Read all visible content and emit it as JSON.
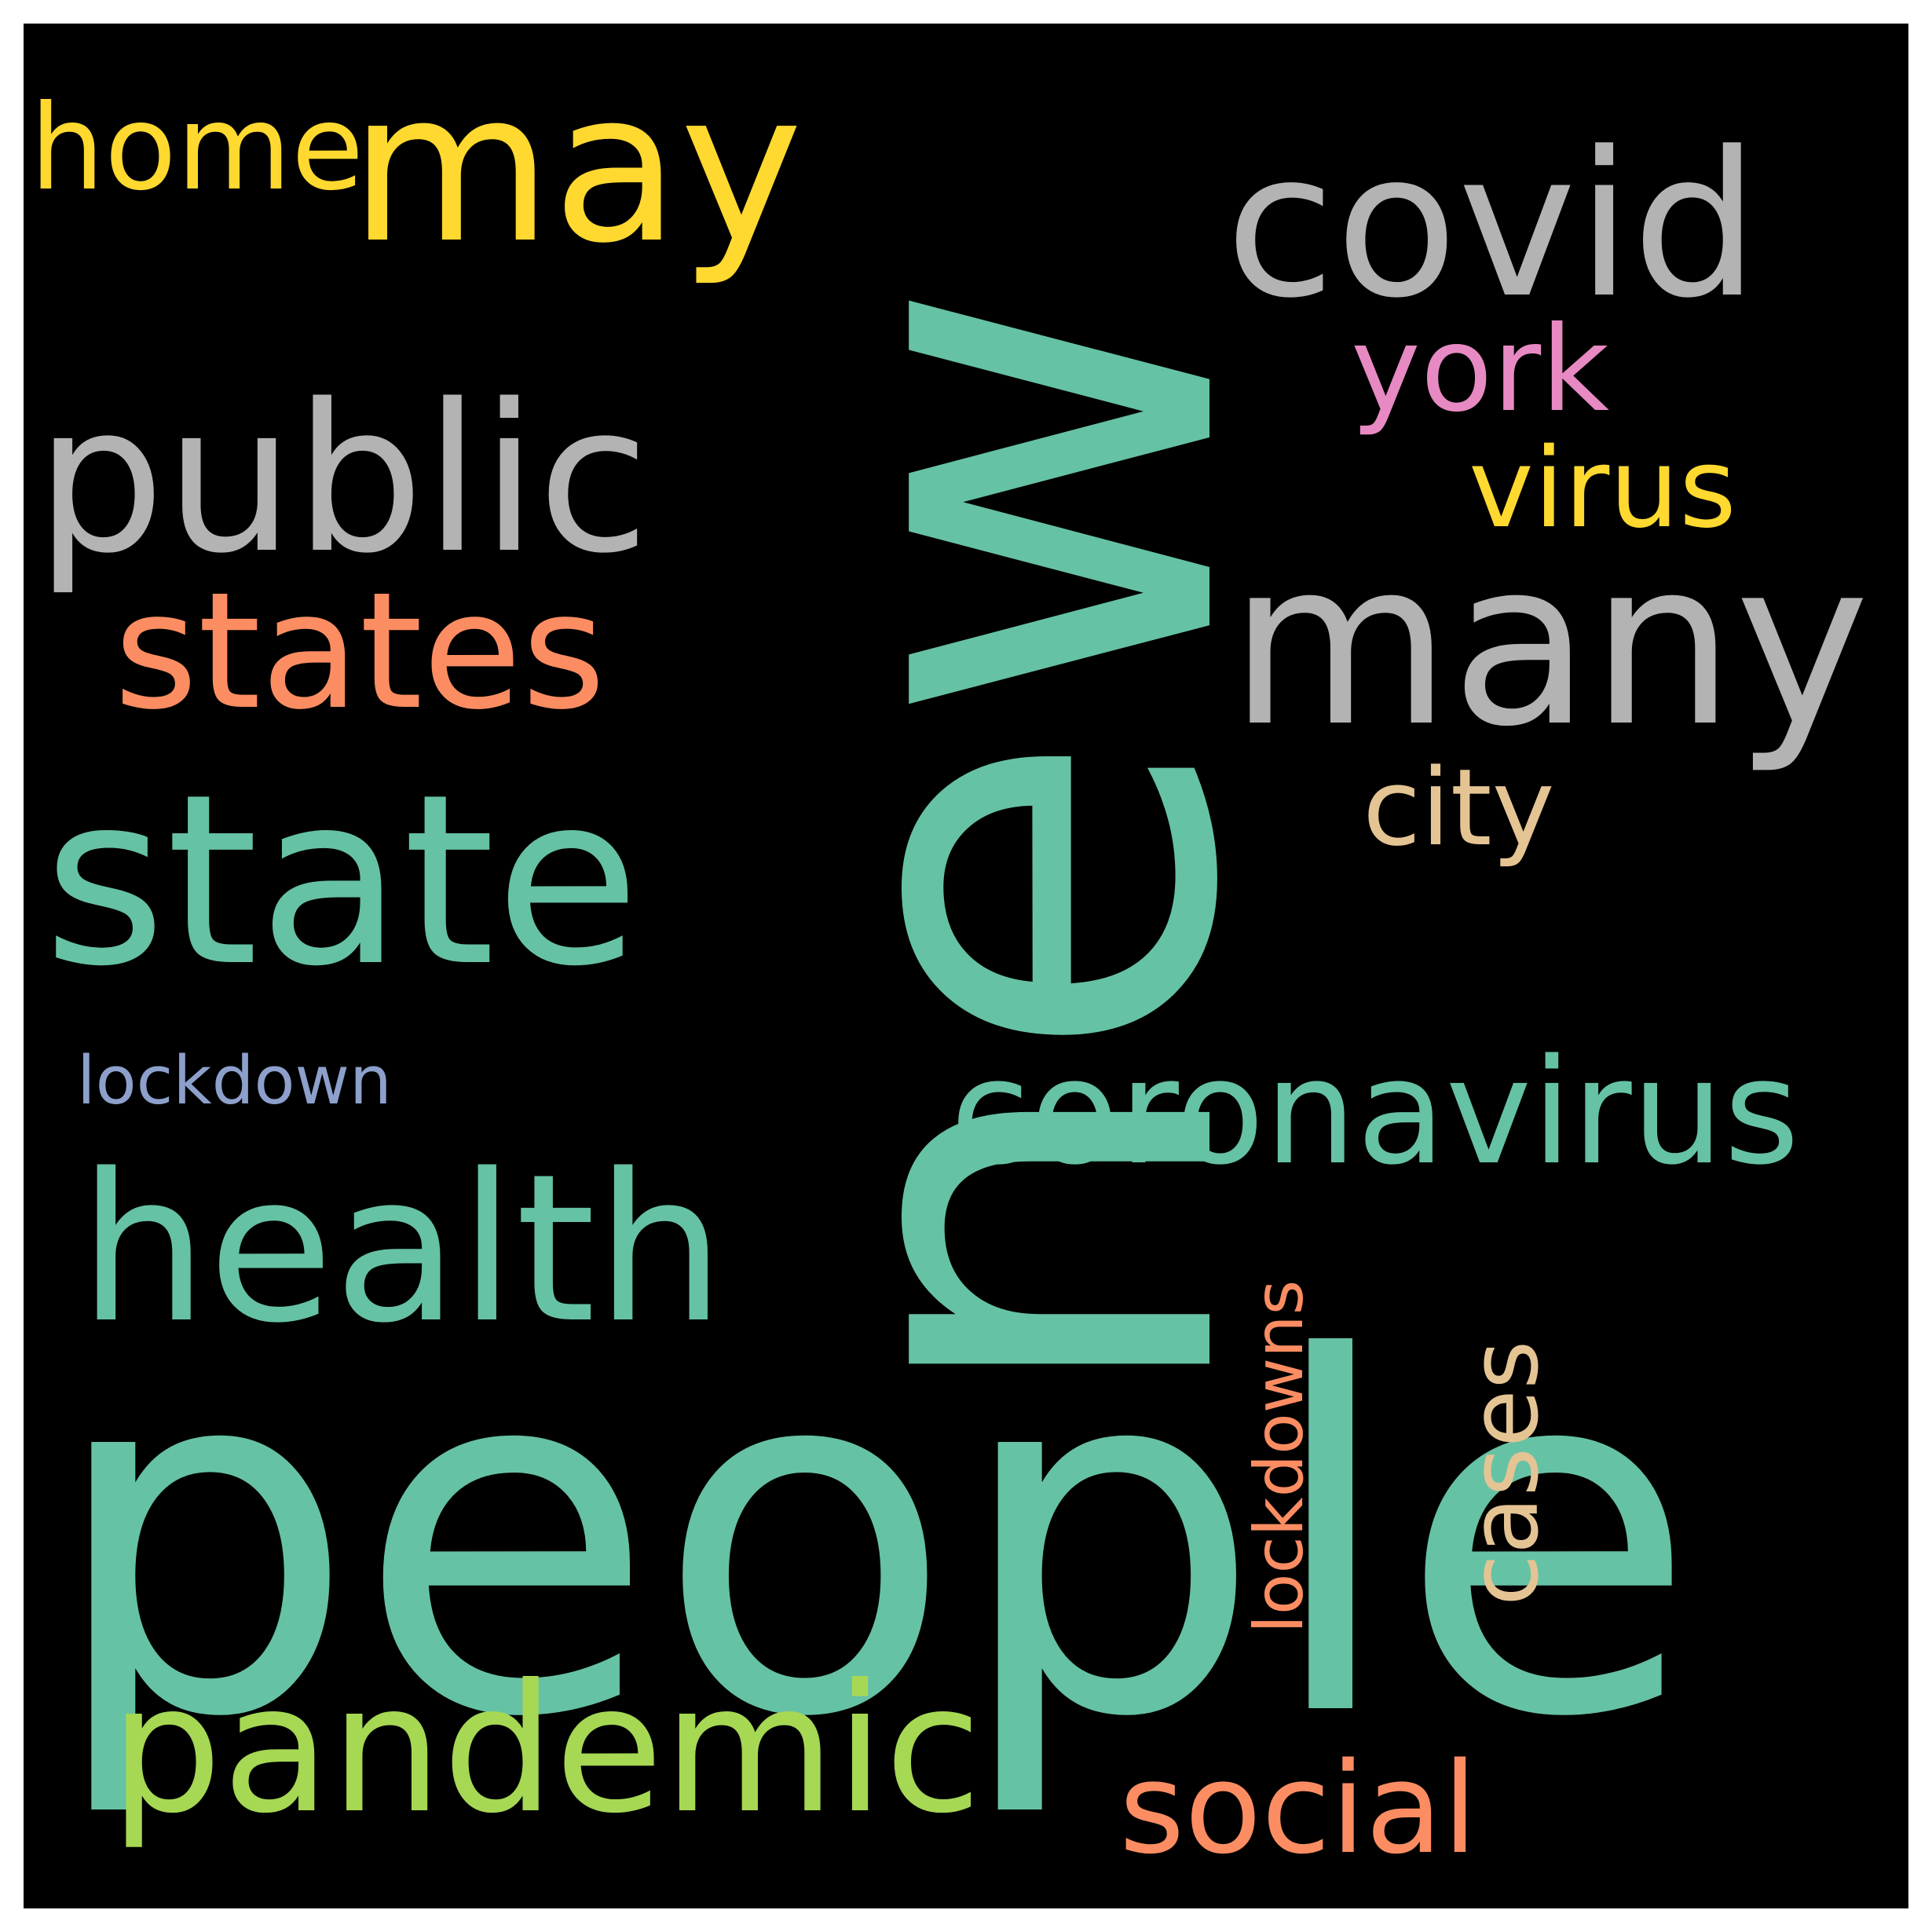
{
  "word_cloud": {
    "background_color": "#000000",
    "words": [
      {
        "text": "new",
        "color": "#66c2a5",
        "orientation": "vertical"
      },
      {
        "text": "people",
        "color": "#66c2a5",
        "orientation": "horizontal"
      },
      {
        "text": "state",
        "color": "#66c2a5",
        "orientation": "horizontal"
      },
      {
        "text": "health",
        "color": "#66c2a5",
        "orientation": "horizontal"
      },
      {
        "text": "coronavirus",
        "color": "#66c2a5",
        "orientation": "horizontal"
      },
      {
        "text": "many",
        "color": "#b3b3b3",
        "orientation": "horizontal"
      },
      {
        "text": "public",
        "color": "#b3b3b3",
        "orientation": "horizontal"
      },
      {
        "text": "covid",
        "color": "#b3b3b3",
        "orientation": "horizontal"
      },
      {
        "text": "may",
        "color": "#ffd92f",
        "orientation": "horizontal"
      },
      {
        "text": "home",
        "color": "#ffd92f",
        "orientation": "horizontal"
      },
      {
        "text": "virus",
        "color": "#ffd92f",
        "orientation": "horizontal"
      },
      {
        "text": "states",
        "color": "#fc8d62",
        "orientation": "horizontal"
      },
      {
        "text": "social",
        "color": "#fc8d62",
        "orientation": "horizontal"
      },
      {
        "text": "lockdowns",
        "color": "#fc8d62",
        "orientation": "vertical"
      },
      {
        "text": "pandemic",
        "color": "#a6d854",
        "orientation": "horizontal"
      },
      {
        "text": "york",
        "color": "#e78ac3",
        "orientation": "horizontal"
      },
      {
        "text": "city",
        "color": "#e5c494",
        "orientation": "horizontal"
      },
      {
        "text": "cases",
        "color": "#e5c494",
        "orientation": "vertical"
      },
      {
        "text": "lockdown",
        "color": "#8da0cb",
        "orientation": "horizontal"
      }
    ]
  }
}
